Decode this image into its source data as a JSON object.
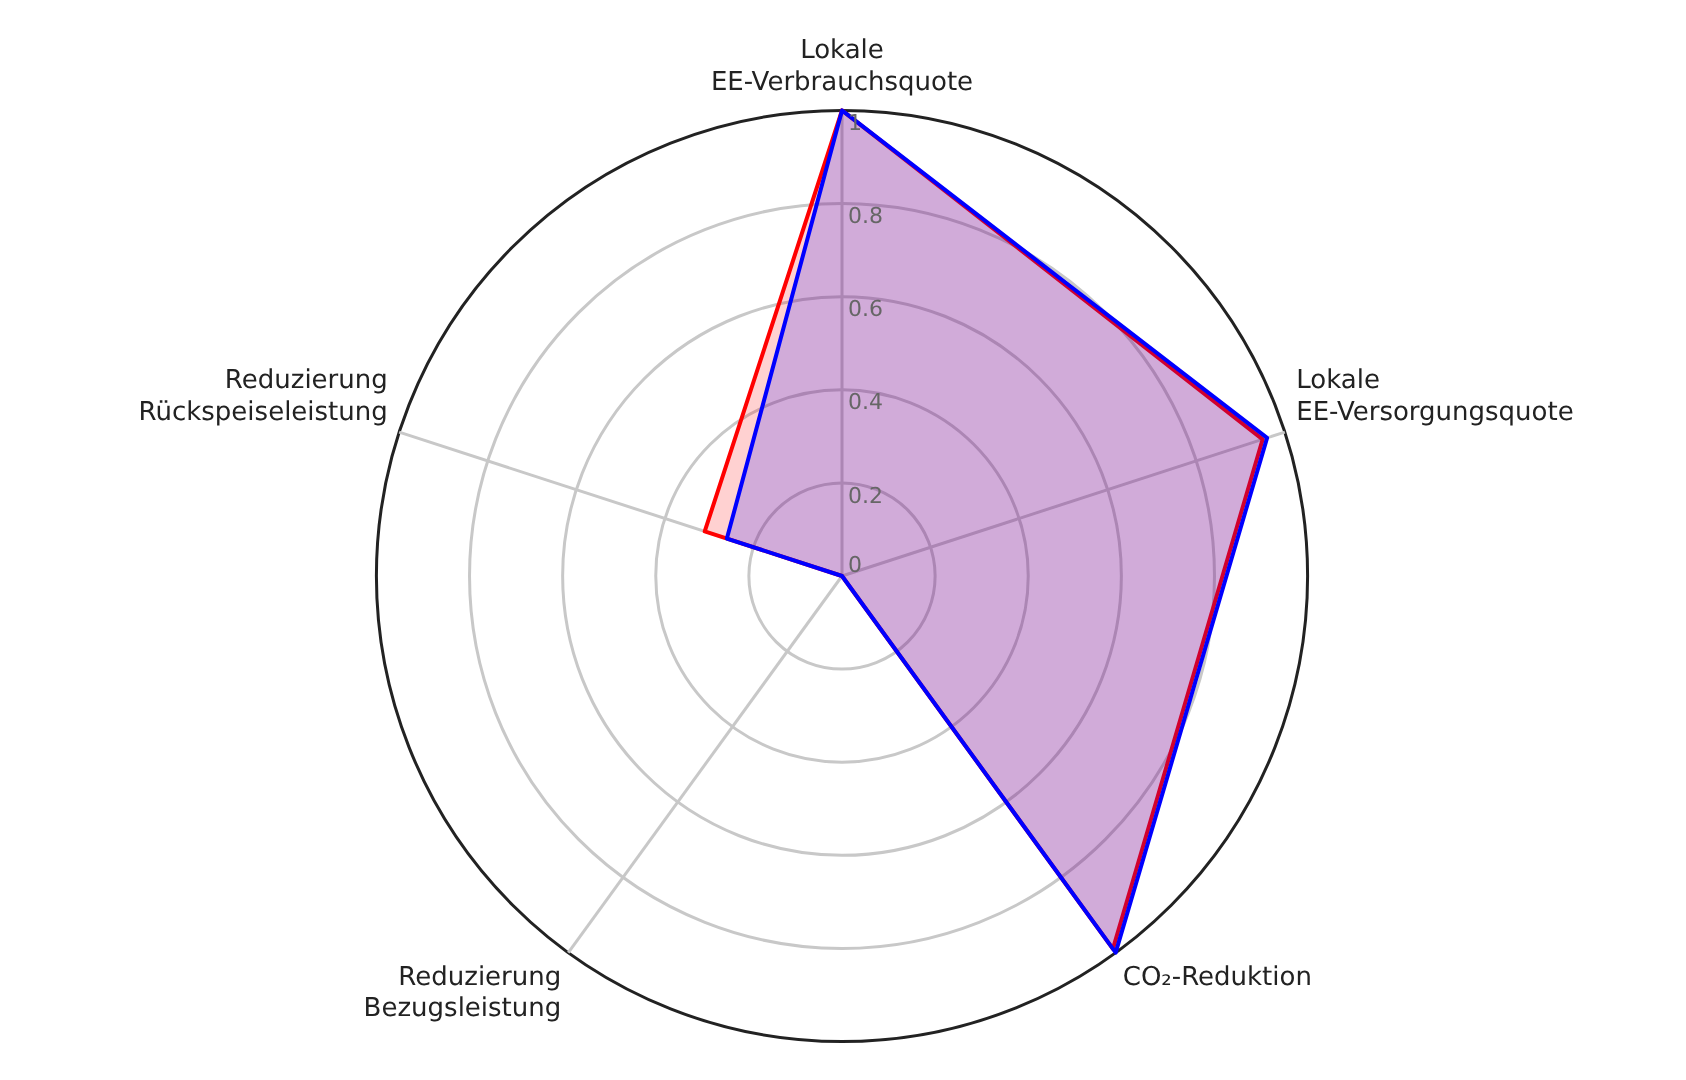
{
  "chart_data": {
    "type": "radar",
    "categories": [
      "Lokale EE-Verbrauchsquote",
      "Lokale EE-Versorgungsquote",
      "CO₂-Reduktion",
      "Reduzierung Bezugsleistung",
      "Reduzierung Rückspeiseleistung"
    ],
    "series": [
      {
        "color": "#0000ff",
        "values": [
          1.0,
          0.96,
          1.0,
          0,
          0.26
        ]
      },
      {
        "color": "#ff0000",
        "values": [
          1.0,
          0.95,
          0.99,
          0,
          0.31
        ]
      }
    ],
    "ylim": [
      0,
      1
    ],
    "yticks": [
      0,
      0.2,
      0.4,
      0.6,
      0.8,
      1
    ],
    "grid": true,
    "legend": false,
    "marker": "none"
  }
}
